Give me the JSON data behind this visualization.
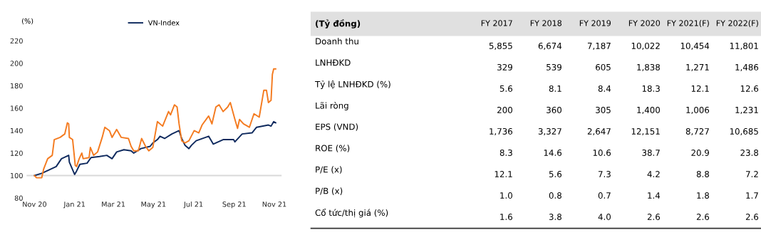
{
  "chart_data": [
    {
      "type": "line",
      "ylabel": "(%)",
      "legend": "top",
      "ylim": [
        80,
        220
      ],
      "yticks": [
        80,
        100,
        120,
        140,
        160,
        180,
        200,
        220
      ],
      "xlim": [
        "2020-10-20",
        "2021-11-12"
      ],
      "xticks": [
        {
          "value": "2020-11-01",
          "label": "Nov 20"
        },
        {
          "value": "2021-01-01",
          "label": "Jan 21"
        },
        {
          "value": "2021-03-01",
          "label": "Mar 21"
        },
        {
          "value": "2021-05-01",
          "label": "May 21"
        },
        {
          "value": "2021-07-01",
          "label": "Jul 21"
        },
        {
          "value": "2021-09-01",
          "label": "Sep 21"
        },
        {
          "value": "2021-11-01",
          "label": "Nov 21"
        }
      ],
      "grid": false,
      "marker": "none",
      "line_style": "solid",
      "ref_lines": [
        {
          "axis": "y",
          "value": 100,
          "color": "#d9d9d9"
        }
      ],
      "series": [
        {
          "name": "VN-Index",
          "color": "#0f2a5e",
          "x": [
            "2020-11-01",
            "2020-11-12",
            "2020-11-23",
            "2020-12-04",
            "2020-12-12",
            "2020-12-23",
            "2020-12-24",
            "2021-01-01",
            "2021-01-04",
            "2021-01-09",
            "2021-01-20",
            "2021-01-26",
            "2021-02-08",
            "2021-02-19",
            "2021-02-27",
            "2021-03-06",
            "2021-03-17",
            "2021-03-28",
            "2021-04-01",
            "2021-04-12",
            "2021-04-26",
            "2021-04-30",
            "2021-05-07",
            "2021-05-11",
            "2021-05-18",
            "2021-05-29",
            "2021-06-09",
            "2021-06-13",
            "2021-06-18",
            "2021-06-24",
            "2021-06-28",
            "2021-07-05",
            "2021-07-24",
            "2021-07-31",
            "2021-08-15",
            "2021-08-31",
            "2021-09-02",
            "2021-09-13",
            "2021-09-28",
            "2021-10-05",
            "2021-10-23",
            "2021-10-27",
            "2021-10-31",
            "2021-11-03"
          ],
          "values": [
            100,
            102,
            105,
            108,
            115,
            118,
            112,
            101,
            104,
            110,
            111,
            116,
            117,
            118,
            115,
            121,
            123,
            122,
            120,
            124,
            126,
            129,
            132,
            135,
            133,
            137,
            140,
            133,
            127,
            124,
            127,
            131,
            135,
            128,
            132,
            132,
            130,
            137,
            138,
            143,
            145,
            144,
            148,
            147
          ]
        },
        {
          "color": "#f47b20",
          "x": [
            "2020-11-01",
            "2020-11-04",
            "2020-11-12",
            "2020-11-15",
            "2020-11-21",
            "2020-11-28",
            "2020-12-01",
            "2020-12-10",
            "2020-12-17",
            "2020-12-21",
            "2020-12-23",
            "2020-12-24",
            "2020-12-29",
            "2021-01-02",
            "2021-01-04",
            "2021-01-08",
            "2021-01-12",
            "2021-01-14",
            "2021-01-23",
            "2021-01-25",
            "2021-01-30",
            "2021-02-05",
            "2021-02-12",
            "2021-02-16",
            "2021-02-23",
            "2021-02-27",
            "2021-03-06",
            "2021-03-13",
            "2021-03-24",
            "2021-03-28",
            "2021-04-01",
            "2021-04-08",
            "2021-04-13",
            "2021-04-19",
            "2021-04-24",
            "2021-04-30",
            "2021-05-07",
            "2021-05-15",
            "2021-05-24",
            "2021-05-27",
            "2021-06-02",
            "2021-06-06",
            "2021-06-09",
            "2021-06-13",
            "2021-06-18",
            "2021-06-24",
            "2021-07-02",
            "2021-07-09",
            "2021-07-14",
            "2021-07-24",
            "2021-07-29",
            "2021-08-04",
            "2021-08-09",
            "2021-08-15",
            "2021-08-22",
            "2021-08-26",
            "2021-09-02",
            "2021-09-06",
            "2021-09-09",
            "2021-09-15",
            "2021-09-24",
            "2021-10-01",
            "2021-10-09",
            "2021-10-16",
            "2021-10-20",
            "2021-10-23",
            "2021-10-27",
            "2021-10-29",
            "2021-10-31",
            "2021-11-03"
          ],
          "values": [
            100,
            98,
            98,
            106,
            115,
            118,
            132,
            134,
            137,
            147,
            146,
            134,
            132,
            109,
            108,
            115,
            120,
            115,
            116,
            125,
            118,
            121,
            134,
            143,
            140,
            134,
            141,
            134,
            133,
            126,
            122,
            122,
            133,
            126,
            122,
            125,
            148,
            144,
            157,
            154,
            163,
            161,
            146,
            131,
            129,
            131,
            140,
            138,
            145,
            153,
            146,
            161,
            163,
            157,
            161,
            165,
            150,
            142,
            150,
            146,
            143,
            155,
            152,
            176,
            176,
            165,
            167,
            190,
            195,
            195
          ]
        }
      ]
    },
    {
      "type": "other",
      "title": "(Tỷ đồng)",
      "categories": [
        "FY 2017",
        "FY 2018",
        "FY 2019",
        "FY 2020",
        "FY 2021(F)",
        "FY 2022(F)"
      ],
      "y_categories": [
        "Doanh thu",
        "LNHĐKD",
        "Tỷ lệ LNHĐKD (%)",
        "Lãi ròng",
        "EPS (VND)",
        "ROE (%)",
        "P/E (x)",
        "P/B (x)",
        "Cổ tức/thị giá (%)"
      ],
      "cell_labels": [
        [
          "5,855",
          "6,674",
          "7,187",
          "10,022",
          "10,454",
          "11,801"
        ],
        [
          "329",
          "539",
          "605",
          "1,838",
          "1,271",
          "1,486"
        ],
        [
          "5.6",
          "8.1",
          "8.4",
          "18.3",
          "12.1",
          "12.6"
        ],
        [
          "200",
          "360",
          "305",
          "1,400",
          "1,006",
          "1,231"
        ],
        [
          "1,736",
          "3,327",
          "2,647",
          "12,151",
          "8,727",
          "10,685"
        ],
        [
          "8.3",
          "14.6",
          "10.6",
          "38.7",
          "20.9",
          "23.8"
        ],
        [
          "12.1",
          "5.6",
          "7.3",
          "4.2",
          "8.8",
          "7.2"
        ],
        [
          "1.0",
          "0.8",
          "0.7",
          "1.4",
          "1.8",
          "1.7"
        ],
        [
          "1.6",
          "3.8",
          "4.0",
          "2.6",
          "2.6",
          "2.6"
        ]
      ]
    }
  ]
}
